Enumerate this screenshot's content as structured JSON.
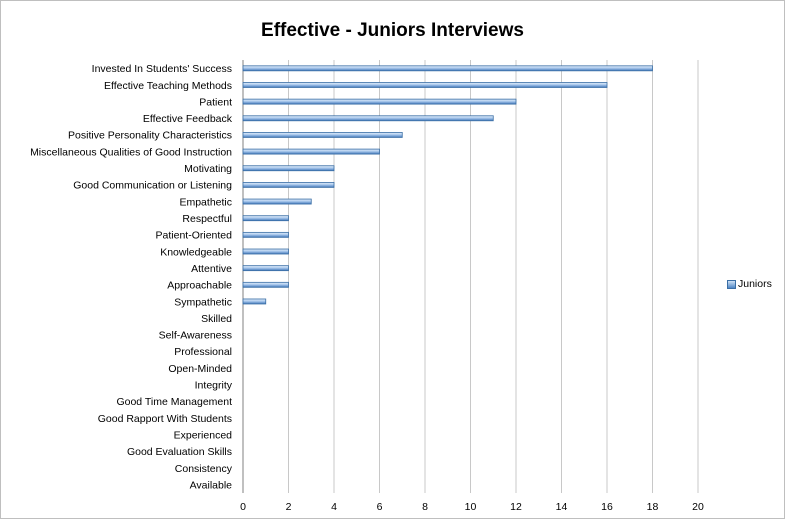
{
  "chart_data": {
    "type": "bar",
    "orientation": "horizontal",
    "title": "Effective - Juniors Interviews",
    "xlabel": "",
    "ylabel": "",
    "xlim": [
      0,
      20
    ],
    "ticks": [
      "0",
      "2",
      "4",
      "6",
      "8",
      "10",
      "12",
      "14",
      "16",
      "18",
      "20"
    ],
    "grid": true,
    "legend_position": "right",
    "categories": [
      "Invested In Students' Success",
      "Effective Teaching Methods",
      "Patient",
      "Effective Feedback",
      "Positive Personality Characteristics",
      "Miscellaneous Qualities of Good Instruction",
      "Motivating",
      "Good Communication or Listening",
      "Empathetic",
      "Respectful",
      "Patient-Oriented",
      "Knowledgeable",
      "Attentive",
      "Approachable",
      "Sympathetic",
      "Skilled",
      "Self-Awareness",
      "Professional",
      "Open-Minded",
      "Integrity",
      "Good Time Management",
      "Good Rapport With Students",
      "Experienced",
      "Good Evaluation Skills",
      "Consistency",
      "Available"
    ],
    "series": [
      {
        "name": "Juniors",
        "color": "#4f86c6",
        "values": [
          18,
          16,
          12,
          11,
          7,
          6,
          4,
          4,
          3,
          2,
          2,
          2,
          2,
          2,
          1,
          0,
          0,
          0,
          0,
          0,
          0,
          0,
          0,
          0,
          0,
          0
        ]
      }
    ]
  }
}
